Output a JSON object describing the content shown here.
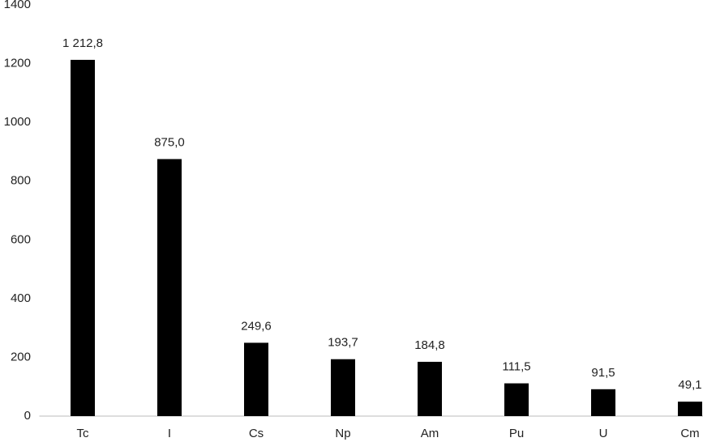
{
  "chart_data": {
    "type": "bar",
    "categories": [
      "Tc",
      "I",
      "Cs",
      "Np",
      "Am",
      "Pu",
      "U",
      "Cm"
    ],
    "values": [
      1212.8,
      875.0,
      249.6,
      193.7,
      184.8,
      111.5,
      91.5,
      49.1
    ],
    "value_labels": [
      "1 212,8",
      "875,0",
      "249,6",
      "193,7",
      "184,8",
      "111,5",
      "91,5",
      "49,1"
    ],
    "color": "#000000",
    "ylim": [
      0,
      1400
    ],
    "yticks": [
      0,
      200,
      400,
      600,
      800,
      1000,
      1200,
      1400
    ],
    "grid": false
  }
}
